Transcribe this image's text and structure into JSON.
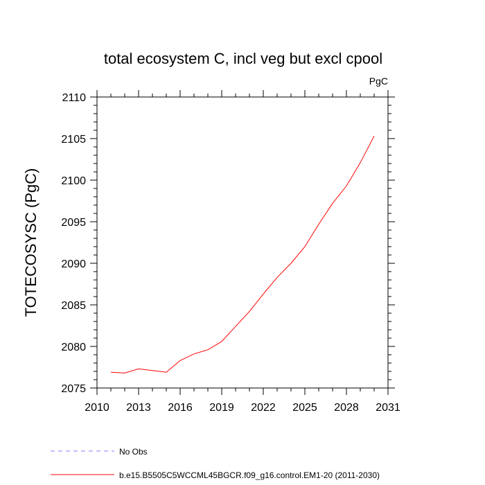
{
  "chart_data": {
    "type": "line",
    "title": "total ecosystem C, incl veg but excl cpool",
    "units_label": "PgC",
    "ylabel": "TOTECOSYSC  (PgC)",
    "xlabel": "",
    "xlim": [
      2010,
      2031
    ],
    "ylim": [
      2075,
      2110
    ],
    "xticks": [
      2010,
      2013,
      2016,
      2019,
      2022,
      2025,
      2028,
      2031
    ],
    "yticks": [
      2075,
      2080,
      2085,
      2090,
      2095,
      2100,
      2105,
      2110
    ],
    "series": [
      {
        "name": "b.e15.B5505C5WCCML45BGCR.f09_g16.control.EM1-20 (2011-2030)",
        "color": "#ff0000",
        "dash": "solid",
        "x": [
          2011,
          2012,
          2013,
          2014,
          2015,
          2016,
          2017,
          2018,
          2019,
          2020,
          2021,
          2022,
          2023,
          2024,
          2025,
          2026,
          2027,
          2028,
          2029,
          2030
        ],
        "y": [
          2076.9,
          2076.8,
          2077.3,
          2077.1,
          2076.9,
          2078.3,
          2079.1,
          2079.6,
          2080.6,
          2082.4,
          2084.2,
          2086.3,
          2088.3,
          2090.0,
          2092.0,
          2094.7,
          2097.2,
          2099.3,
          2102.1,
          2105.3
        ]
      }
    ],
    "legend": [
      {
        "label": "No Obs",
        "color": "#8080ff",
        "dash": "dashed"
      },
      {
        "label": "b.e15.B5505C5WCCML45BGCR.f09_g16.control.EM1-20 (2011-2030)",
        "color": "#ff0000",
        "dash": "solid"
      }
    ],
    "legend_position": "bottom-left",
    "grid": false
  }
}
